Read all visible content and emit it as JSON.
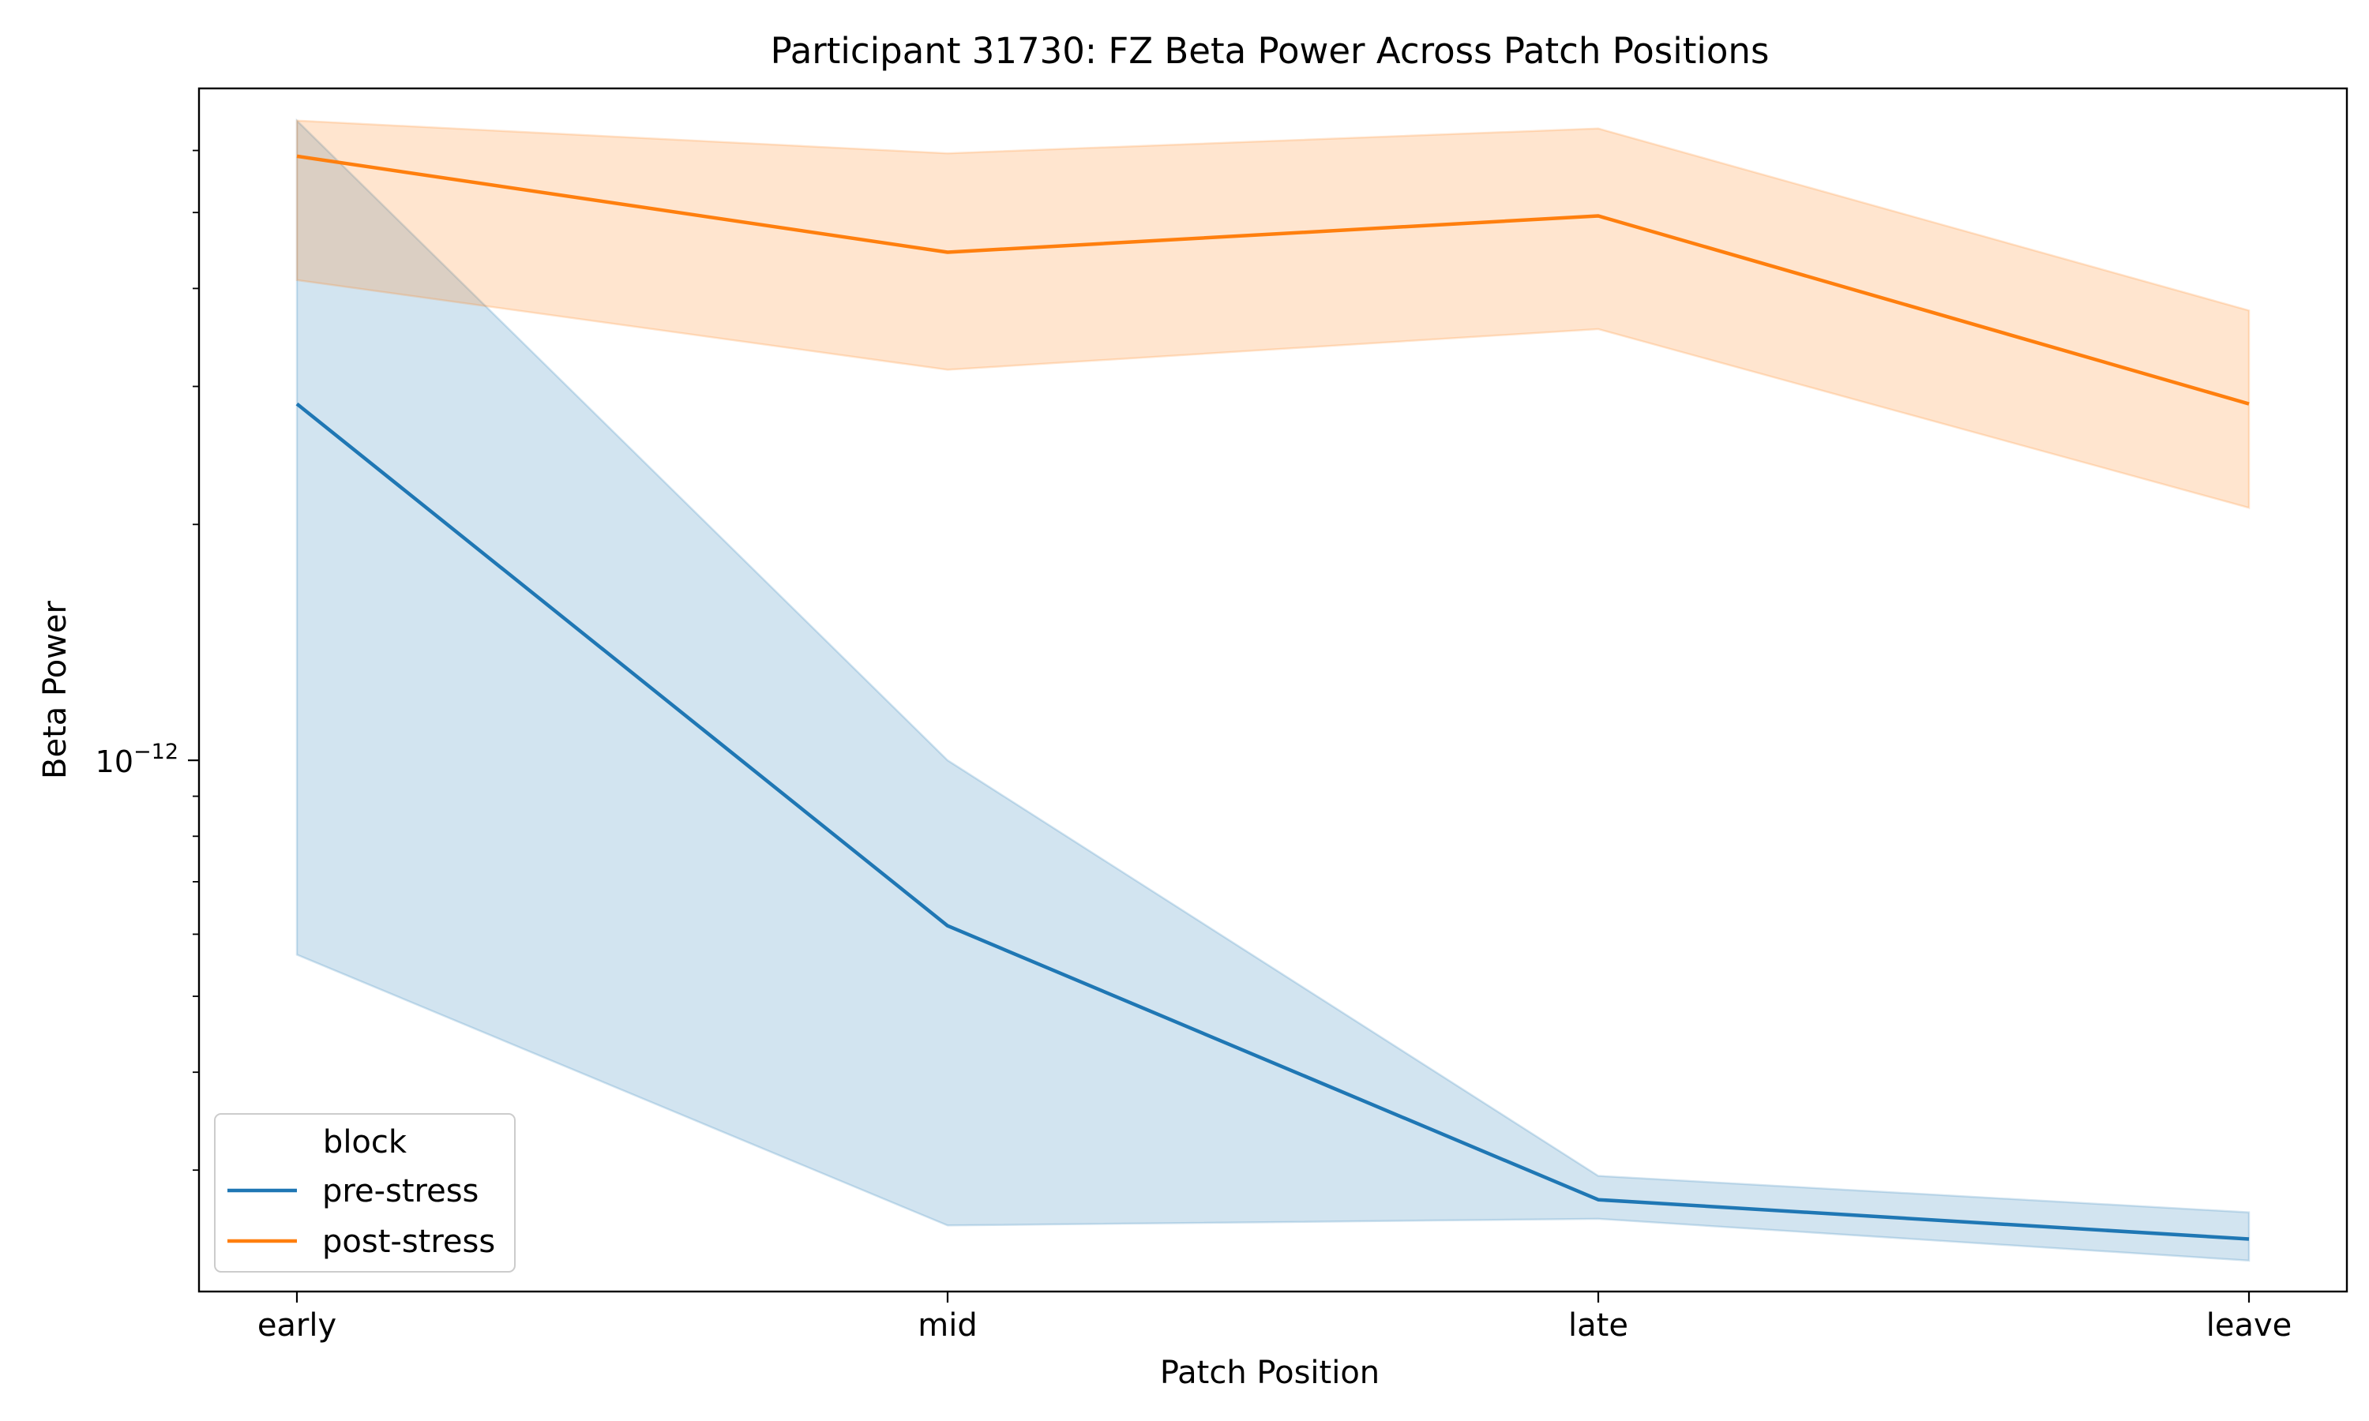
{
  "chart_data": {
    "type": "line",
    "title": "Participant 31730: FZ Beta Power Across Patch Positions",
    "xlabel": "Patch Position",
    "ylabel": "Beta Power",
    "categories": [
      "early",
      "mid",
      "late",
      "leave"
    ],
    "y_scale": "log",
    "ylim": [
      2.1e-13,
      7.2e-12
    ],
    "y_major_ticks": [
      {
        "value": 1e-12,
        "base": "10",
        "exponent": "−12"
      }
    ],
    "y_minor_ticks": [
      3e-13,
      4e-13,
      5e-13,
      6e-13,
      7e-13,
      8e-13,
      9e-13,
      2e-12,
      3e-12,
      4e-12,
      5e-12,
      6e-12
    ],
    "grid": false,
    "legend": {
      "title": "block",
      "position": "lower-left"
    },
    "series": [
      {
        "name": "pre-stress",
        "color": "#1f77b4",
        "values": [
          2.85e-12,
          6.15e-13,
          2.75e-13,
          2.45e-13
        ],
        "ci_low": [
          5.65e-13,
          2.55e-13,
          2.6e-13,
          2.3e-13
        ],
        "ci_high": [
          6.55e-12,
          1e-12,
          2.95e-13,
          2.65e-13
        ]
      },
      {
        "name": "post-stress",
        "color": "#ff7f0e",
        "values": [
          5.9e-12,
          4.45e-12,
          4.95e-12,
          2.85e-12
        ],
        "ci_low": [
          4.1e-12,
          3.15e-12,
          3.55e-12,
          2.1e-12
        ],
        "ci_high": [
          6.55e-12,
          5.95e-12,
          6.4e-12,
          3.75e-12
        ]
      }
    ]
  }
}
